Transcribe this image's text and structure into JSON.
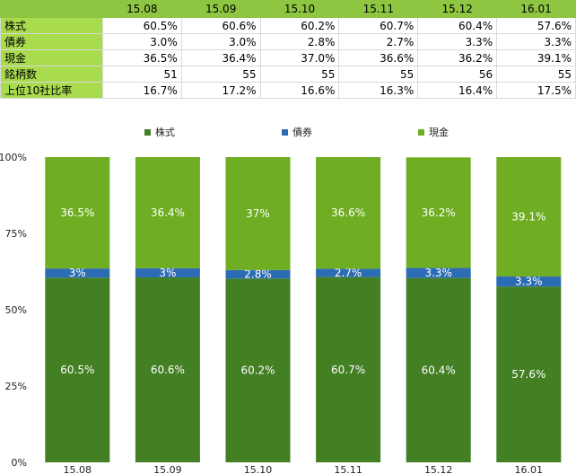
{
  "table": {
    "columns": [
      "15.08",
      "15.09",
      "15.10",
      "15.11",
      "15.12",
      "16.01"
    ],
    "rows": [
      {
        "label": "株式",
        "values": [
          "60.5%",
          "60.6%",
          "60.2%",
          "60.7%",
          "60.4%",
          "57.6%"
        ]
      },
      {
        "label": "債券",
        "values": [
          "3.0%",
          "3.0%",
          "2.8%",
          "2.7%",
          "3.3%",
          "3.3%"
        ]
      },
      {
        "label": "現金",
        "values": [
          "36.5%",
          "36.4%",
          "37.0%",
          "36.6%",
          "36.2%",
          "39.1%"
        ]
      },
      {
        "label": "銘柄数",
        "values": [
          "51",
          "55",
          "55",
          "55",
          "56",
          "55"
        ]
      },
      {
        "label": "上位10社比率",
        "values": [
          "16.7%",
          "17.2%",
          "16.6%",
          "16.3%",
          "16.4%",
          "17.5%"
        ]
      }
    ]
  },
  "chart_data": {
    "type": "bar",
    "stacked": true,
    "categories": [
      "15.08",
      "15.09",
      "15.10",
      "15.11",
      "15.12",
      "16.01"
    ],
    "series": [
      {
        "name": "株式",
        "color": "#437f23",
        "values": [
          60.5,
          60.6,
          60.2,
          60.7,
          60.4,
          57.6
        ],
        "labels": [
          "60.5%",
          "60.6%",
          "60.2%",
          "60.7%",
          "60.4%",
          "57.6%"
        ]
      },
      {
        "name": "債券",
        "color": "#2c6cb5",
        "values": [
          3,
          3,
          2.8,
          2.7,
          3.3,
          3.3
        ],
        "labels": [
          "3%",
          "3%",
          "2.8%",
          "2.7%",
          "3.3%",
          "3.3%"
        ]
      },
      {
        "name": "現金",
        "color": "#6fad22",
        "values": [
          36.5,
          36.4,
          37,
          36.6,
          36.2,
          39.1
        ],
        "labels": [
          "36.5%",
          "36.4%",
          "37%",
          "36.6%",
          "36.2%",
          "39.1%"
        ]
      }
    ],
    "ylim": [
      0,
      100
    ],
    "yticks": [
      "0%",
      "25%",
      "50%",
      "75%",
      "100%"
    ],
    "legend": "top",
    "grid": false
  }
}
